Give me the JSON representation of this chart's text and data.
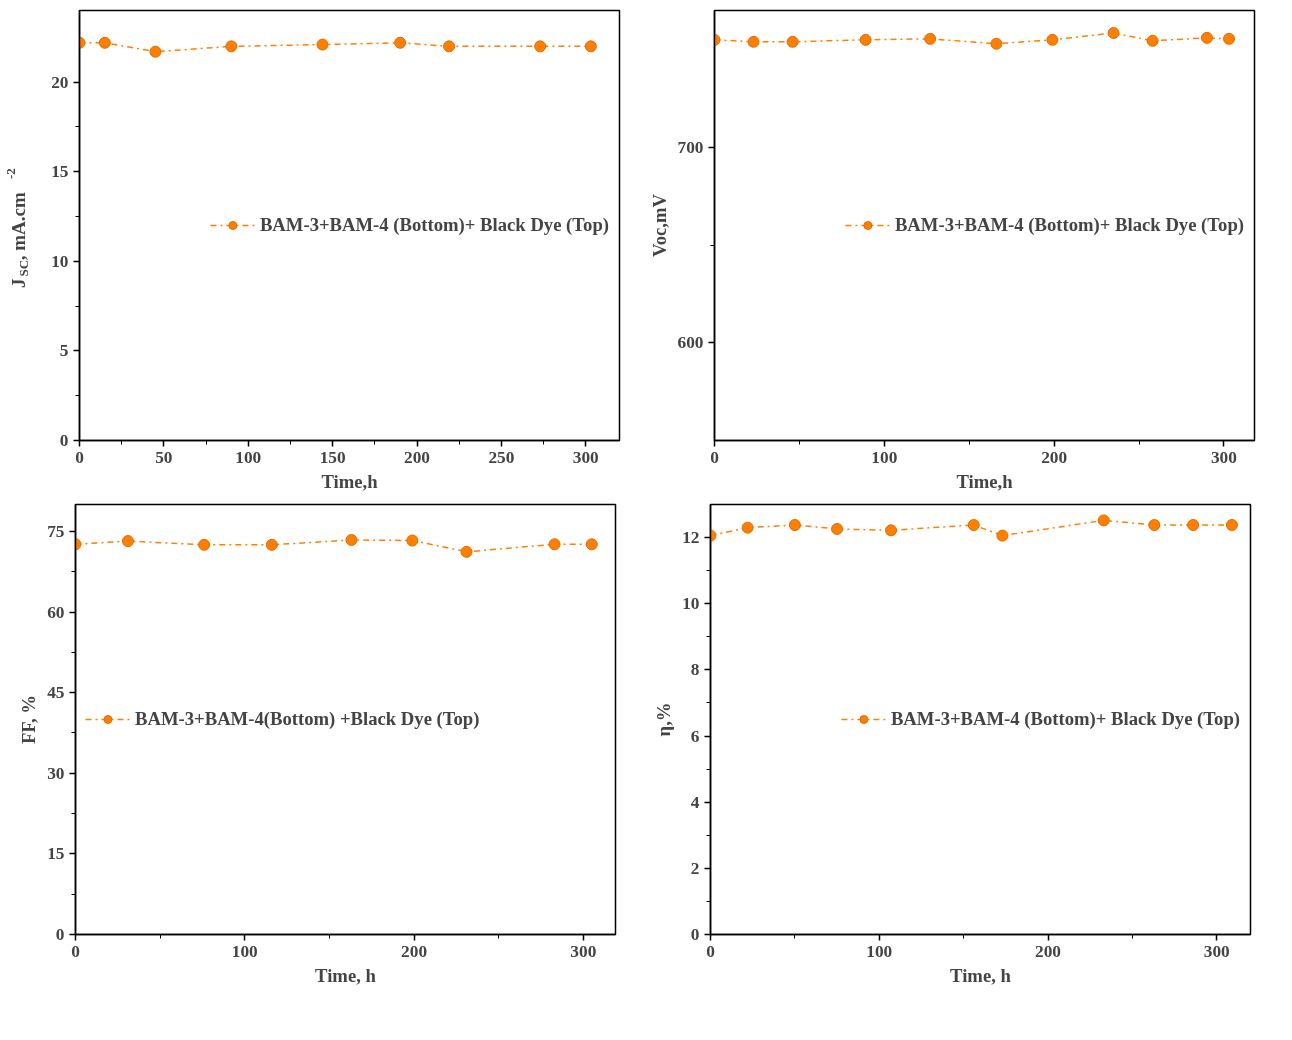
{
  "chart_data": [
    {
      "type": "line",
      "xlabel": "Time,h",
      "ylabel": "J$_{SC}$, mA.cm$^{-2}$",
      "x": [
        0,
        15,
        45,
        90,
        144,
        190,
        219,
        273,
        303
      ],
      "xlim": [
        0,
        320
      ],
      "ylim": [
        0,
        24
      ],
      "xticks": [
        0,
        50,
        100,
        150,
        200,
        250,
        300
      ],
      "yticks": [
        0,
        5,
        10,
        15,
        20
      ],
      "legend": "right",
      "marker": "circle",
      "line_style": "dashdot",
      "series": [
        {
          "name": "BAM-3+BAM-4 (Bottom)+ Black Dye (Top)",
          "color": "#ff8000",
          "values": [
            22.2,
            22.2,
            21.7,
            22.0,
            22.1,
            22.2,
            22.0,
            22.0,
            22.0
          ]
        }
      ]
    },
    {
      "type": "line",
      "xlabel": "Time,h",
      "ylabel": "Voc,mV",
      "x": [
        0,
        23,
        46,
        89,
        127,
        166,
        199,
        235,
        258,
        290,
        303
      ],
      "xlim": [
        0,
        318
      ],
      "ylim": [
        550,
        770
      ],
      "xticks": [
        0,
        100,
        200,
        300
      ],
      "yticks": [
        600,
        700
      ],
      "legend": "right",
      "marker": "circle",
      "line_style": "dashdot",
      "series": [
        {
          "name": "BAM-3+BAM-4 (Bottom)+ Black Dye (Top)",
          "color": "#ff8000",
          "values": [
            755,
            754,
            754,
            755,
            755.5,
            753,
            755,
            758.5,
            754.5,
            756,
            755.5
          ]
        }
      ]
    },
    {
      "type": "line",
      "xlabel": "Time, h",
      "ylabel": "FF, %",
      "x": [
        0,
        31,
        76,
        116,
        163,
        199,
        231,
        283,
        305
      ],
      "xlim": [
        0,
        319
      ],
      "ylim": [
        0,
        80
      ],
      "xticks": [
        0,
        100,
        200,
        300
      ],
      "yticks": [
        0,
        15,
        30,
        45,
        60,
        75
      ],
      "legend": "left",
      "marker": "circle",
      "line_style": "dashdot",
      "series": [
        {
          "name": "BAM-3+BAM-4(Bottom) +Black Dye (Top)",
          "color": "#ff8000",
          "values": [
            72.6,
            73.2,
            72.5,
            72.5,
            73.4,
            73.3,
            71.2,
            72.6,
            72.6
          ]
        }
      ]
    },
    {
      "type": "line",
      "xlabel": "Time, h",
      "ylabel": "η,%",
      "x": [
        0,
        22,
        50,
        75,
        107,
        156,
        173,
        233,
        263,
        286,
        309
      ],
      "xlim": [
        0,
        320
      ],
      "ylim": [
        0,
        13
      ],
      "xticks": [
        0,
        100,
        200,
        300
      ],
      "yticks": [
        0,
        2,
        4,
        6,
        8,
        10,
        12
      ],
      "legend": "right",
      "marker": "circle",
      "line_style": "dashdot",
      "series": [
        {
          "name": "BAM-3+BAM-4 (Bottom)+ Black Dye (Top)",
          "color": "#ff8000",
          "values": [
            12.06,
            12.3,
            12.38,
            12.26,
            12.22,
            12.38,
            12.06,
            12.52,
            12.38,
            12.38,
            12.38
          ]
        }
      ]
    }
  ]
}
